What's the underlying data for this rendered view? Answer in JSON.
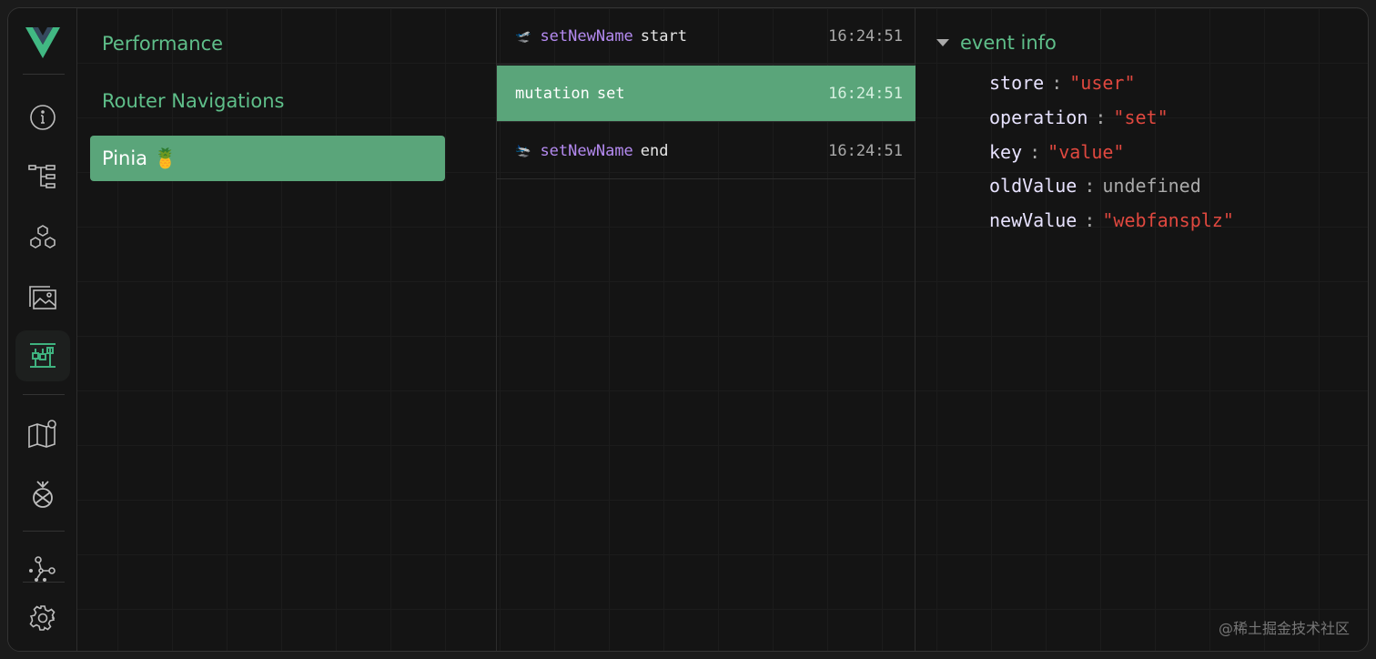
{
  "sidebar": {
    "icons": [
      "vue-logo-icon",
      "info-icon",
      "component-tree-icon",
      "components-icon",
      "assets-icon",
      "timeline-icon",
      "router-map-icon",
      "pinia-icon",
      "graph-icon",
      "settings-icon"
    ],
    "active": "timeline-icon",
    "accent": "#3fb27f"
  },
  "layers": [
    {
      "label": "Performance"
    },
    {
      "label": "Router Navigations"
    },
    {
      "label": "Pinia 🍍",
      "selected": true
    }
  ],
  "events": [
    {
      "emoji": "🛫",
      "name": "setNewName",
      "label": "start",
      "time": "16:24:51"
    },
    {
      "emoji": "",
      "name": "mutation",
      "label": "set",
      "time": "16:24:51",
      "selected": true
    },
    {
      "emoji": "🛬",
      "name": "setNewName",
      "label": "end",
      "time": "16:24:51"
    }
  ],
  "details": {
    "title": "event info",
    "fields": [
      {
        "key": "store",
        "value": "\"user\""
      },
      {
        "key": "operation",
        "value": "\"set\""
      },
      {
        "key": "key",
        "value": "\"value\""
      },
      {
        "key": "oldValue",
        "value": "undefined"
      },
      {
        "key": "newValue",
        "value": "\"webfansplz\""
      }
    ]
  },
  "watermark": "@稀土掘金技术社区"
}
